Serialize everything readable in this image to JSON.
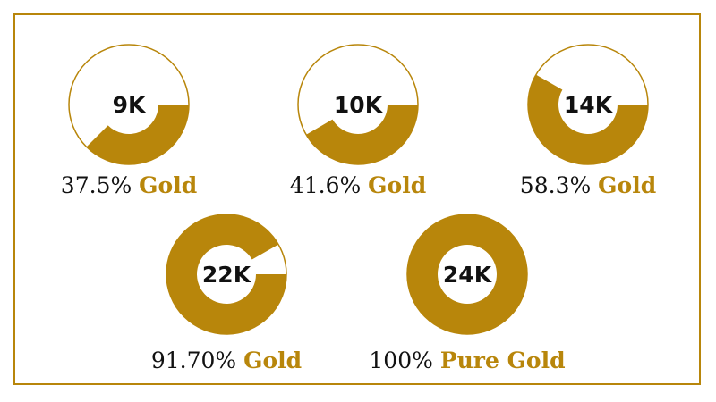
{
  "chart_data": {
    "type": "pie",
    "title": "",
    "color": "#b8860b",
    "start": "3-o'clock, clockwise",
    "items": [
      {
        "karat": "9K",
        "percent": 37.5,
        "pct_label": "37.5%",
        "suffix": "Gold"
      },
      {
        "karat": "10K",
        "percent": 41.6,
        "pct_label": "41.6%",
        "suffix": "Gold"
      },
      {
        "karat": "14K",
        "percent": 58.3,
        "pct_label": "58.3%",
        "suffix": "Gold"
      },
      {
        "karat": "22K",
        "percent": 91.7,
        "pct_label": "91.70%",
        "suffix": "Gold"
      },
      {
        "karat": "24K",
        "percent": 100,
        "pct_label": "100%",
        "suffix": "Pure Gold"
      }
    ]
  }
}
